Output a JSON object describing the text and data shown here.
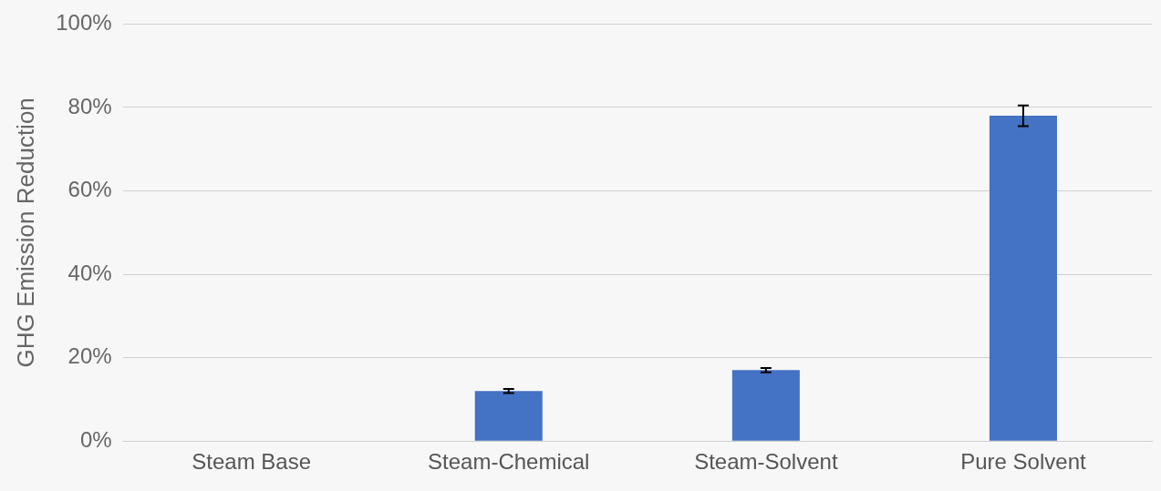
{
  "chart_data": {
    "type": "bar",
    "ylabel": "GHG Emission Reduction",
    "categories": [
      "Steam Base",
      "Steam-Chemical",
      "Steam-Solvent",
      "Pure Solvent"
    ],
    "values": [
      0,
      12,
      17,
      78
    ],
    "errors": [
      null,
      0.5,
      0.5,
      2.5
    ],
    "color": "#4472c4",
    "ylim": [
      0,
      100
    ],
    "yticks": [
      {
        "value": 0,
        "label": "0%"
      },
      {
        "value": 20,
        "label": "20%"
      },
      {
        "value": 40,
        "label": "40%"
      },
      {
        "value": 60,
        "label": "60%"
      },
      {
        "value": 80,
        "label": "80%"
      },
      {
        "value": 100,
        "label": "100%"
      }
    ],
    "grid": "y",
    "legend": false
  }
}
